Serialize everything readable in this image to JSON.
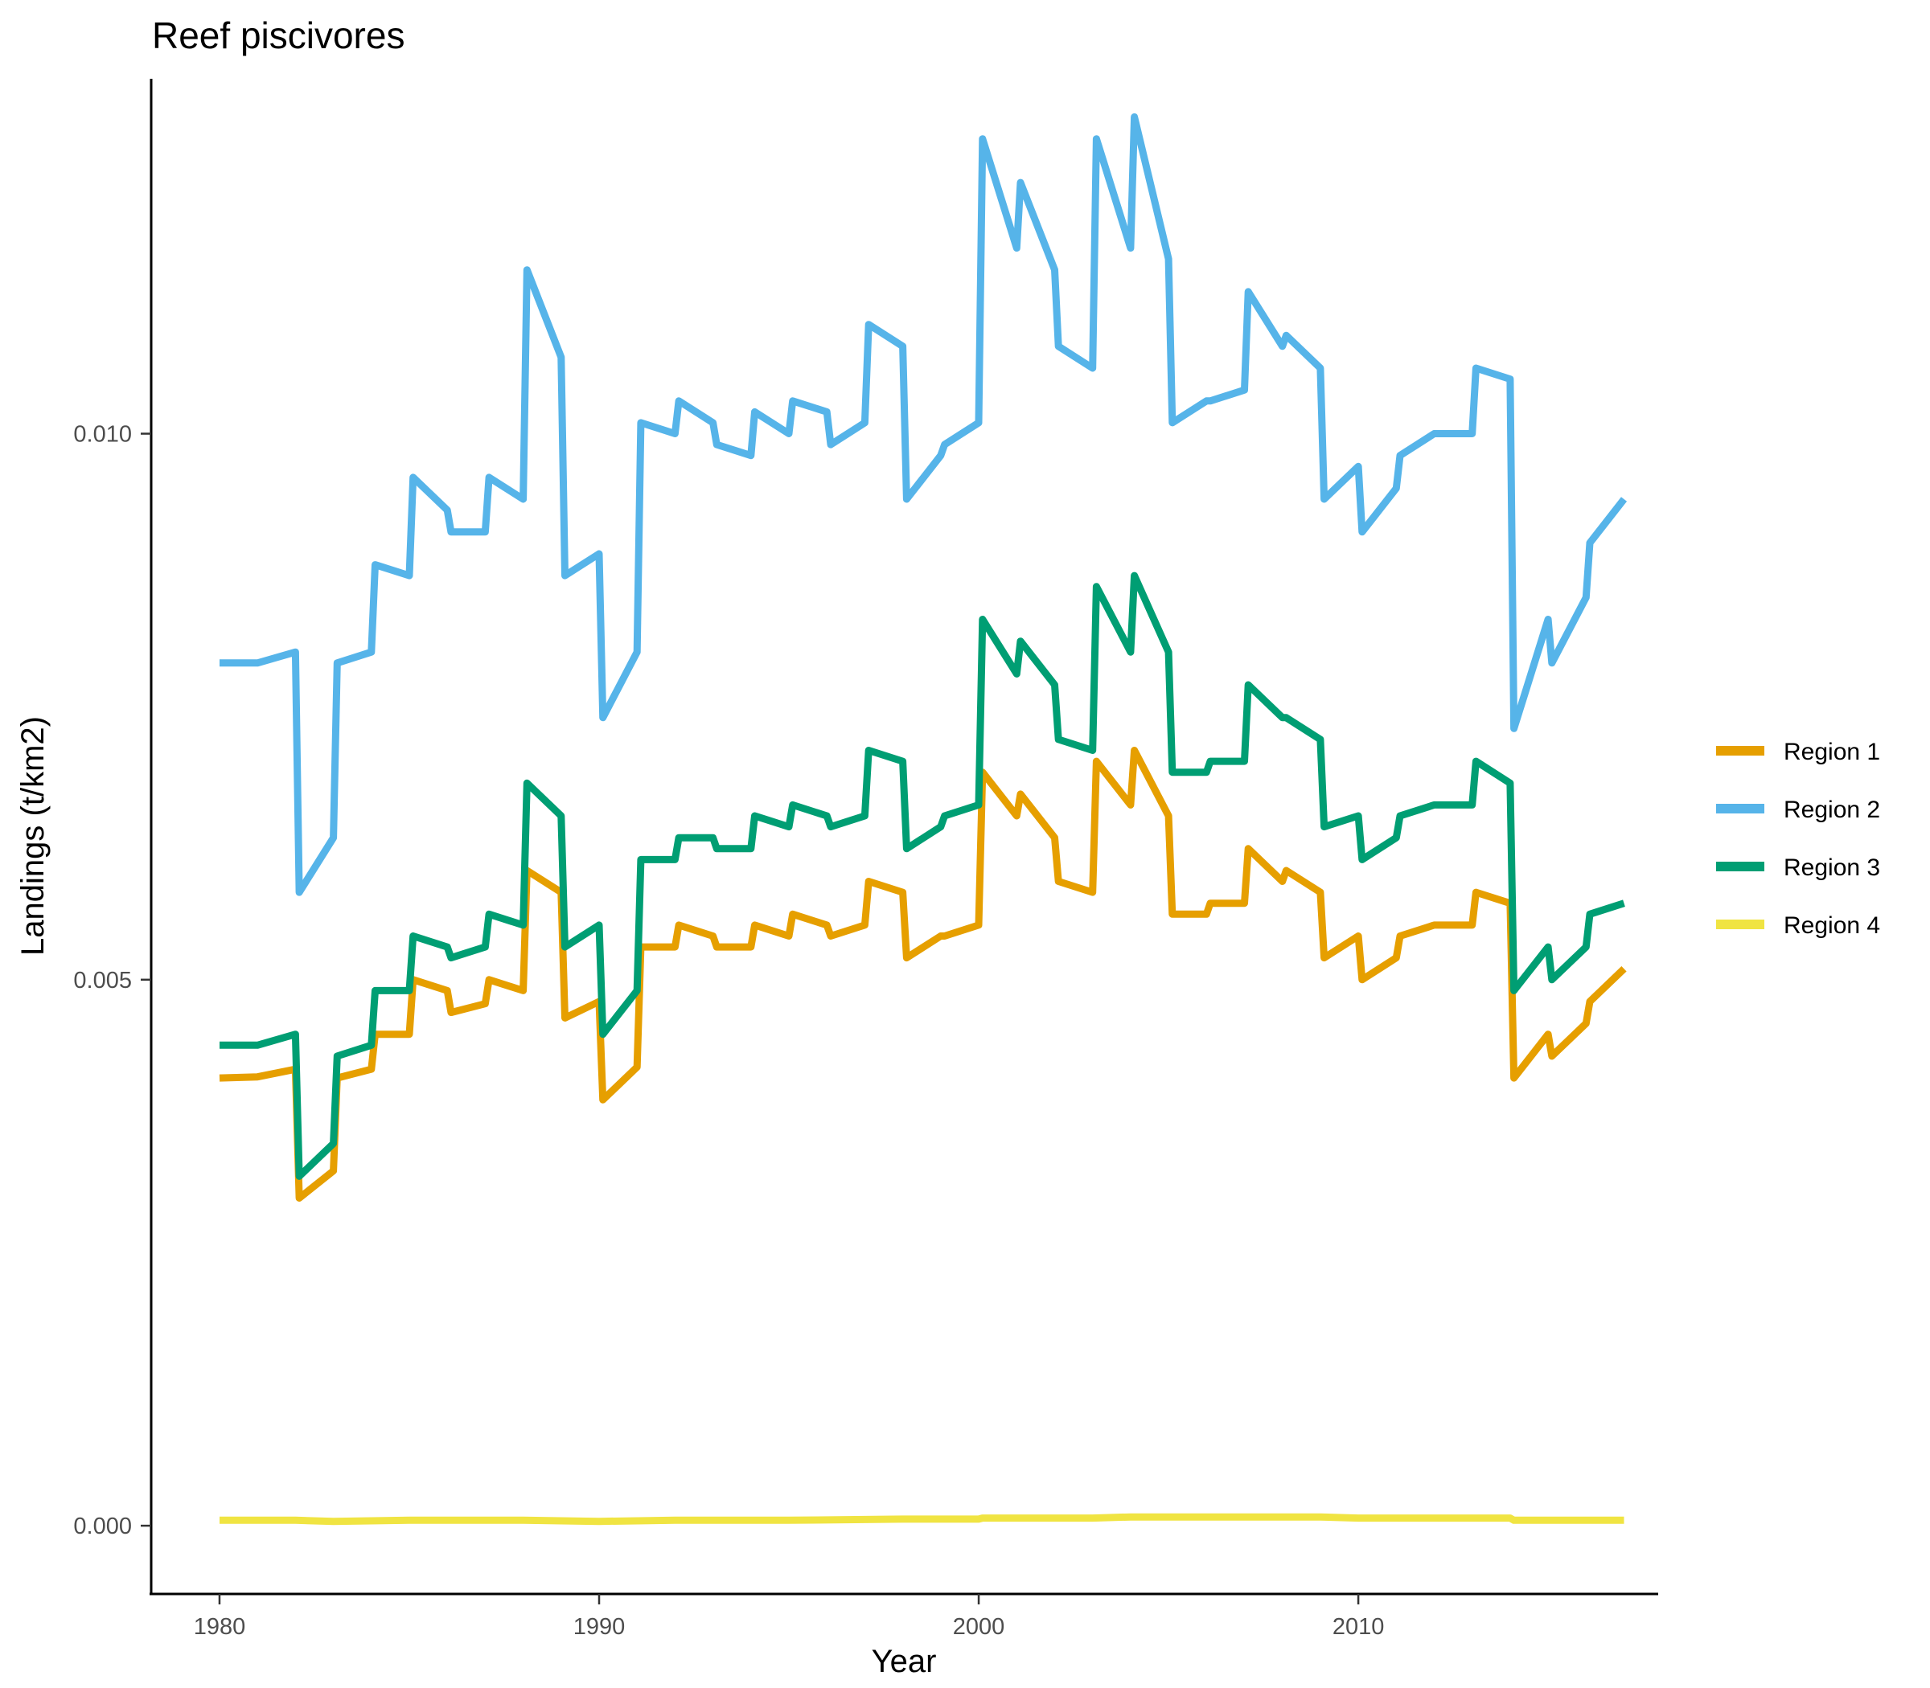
{
  "chart_data": {
    "type": "line",
    "title": "Reef piscivores",
    "xlabel": "Year",
    "ylabel": "Landings (t/km2)",
    "xlim": [
      1978.2,
      2017.9
    ],
    "ylim": [
      -0.000625,
      0.01325
    ],
    "x_ticks": [
      1980,
      1990,
      2000,
      2010
    ],
    "x_tick_labels": [
      "1980",
      "1990",
      "2000",
      "2010"
    ],
    "y_ticks": [
      0,
      0.005,
      0.01
    ],
    "y_tick_labels": [
      "0.000",
      "0.005",
      "0.010"
    ],
    "grid": false,
    "legend_position": "right",
    "series": [
      {
        "name": "Region 1",
        "color": "#E69F00",
        "points": [
          [
            1980.0,
            0.0041
          ],
          [
            1981.0,
            0.00411
          ],
          [
            1982.0,
            0.00418
          ],
          [
            1982.1,
            0.003
          ],
          [
            1983.0,
            0.00325
          ],
          [
            1983.1,
            0.0041
          ],
          [
            1984.0,
            0.00418
          ],
          [
            1984.1,
            0.0045
          ],
          [
            1985.0,
            0.0045
          ],
          [
            1985.1,
            0.005
          ],
          [
            1986.0,
            0.0049
          ],
          [
            1986.1,
            0.0047
          ],
          [
            1987.0,
            0.00478
          ],
          [
            1987.1,
            0.005
          ],
          [
            1988.0,
            0.0049
          ],
          [
            1988.1,
            0.006
          ],
          [
            1989.0,
            0.0058
          ],
          [
            1989.1,
            0.00465
          ],
          [
            1990.0,
            0.0048
          ],
          [
            1990.1,
            0.0039
          ],
          [
            1991.0,
            0.0042
          ],
          [
            1991.1,
            0.0053
          ],
          [
            1992.0,
            0.0053
          ],
          [
            1992.1,
            0.0055
          ],
          [
            1993.0,
            0.0054
          ],
          [
            1993.1,
            0.0053
          ],
          [
            1994.0,
            0.0053
          ],
          [
            1994.1,
            0.0055
          ],
          [
            1995.0,
            0.0054
          ],
          [
            1995.1,
            0.0056
          ],
          [
            1996.0,
            0.0055
          ],
          [
            1996.1,
            0.0054
          ],
          [
            1997.0,
            0.0055
          ],
          [
            1997.1,
            0.0059
          ],
          [
            1998.0,
            0.0058
          ],
          [
            1998.1,
            0.0052
          ],
          [
            1999.0,
            0.0054
          ],
          [
            1999.1,
            0.0054
          ],
          [
            2000.0,
            0.0055
          ],
          [
            2000.1,
            0.0069
          ],
          [
            2001.0,
            0.0065
          ],
          [
            2001.1,
            0.0067
          ],
          [
            2002.0,
            0.0063
          ],
          [
            2002.1,
            0.0059
          ],
          [
            2003.0,
            0.0058
          ],
          [
            2003.1,
            0.007
          ],
          [
            2004.0,
            0.0066
          ],
          [
            2004.1,
            0.0071
          ],
          [
            2005.0,
            0.0065
          ],
          [
            2005.1,
            0.0056
          ],
          [
            2006.0,
            0.0056
          ],
          [
            2006.1,
            0.0057
          ],
          [
            2007.0,
            0.0057
          ],
          [
            2007.1,
            0.0062
          ],
          [
            2008.0,
            0.0059
          ],
          [
            2008.1,
            0.006
          ],
          [
            2009.0,
            0.0058
          ],
          [
            2009.1,
            0.0052
          ],
          [
            2010.0,
            0.0054
          ],
          [
            2010.1,
            0.005
          ],
          [
            2011.0,
            0.0052
          ],
          [
            2011.1,
            0.0054
          ],
          [
            2012.0,
            0.0055
          ],
          [
            2013.0,
            0.0055
          ],
          [
            2013.1,
            0.0058
          ],
          [
            2014.0,
            0.0057
          ],
          [
            2014.1,
            0.0041
          ],
          [
            2015.0,
            0.0045
          ],
          [
            2015.1,
            0.0043
          ],
          [
            2016.0,
            0.0046
          ],
          [
            2016.1,
            0.0048
          ],
          [
            2017.0,
            0.0051
          ]
        ]
      },
      {
        "name": "Region 2",
        "color": "#56B4E9",
        "points": [
          [
            1980.0,
            0.0079
          ],
          [
            1981.0,
            0.0079
          ],
          [
            1982.0,
            0.008
          ],
          [
            1982.1,
            0.0058
          ],
          [
            1983.0,
            0.0063
          ],
          [
            1983.1,
            0.0079
          ],
          [
            1984.0,
            0.008
          ],
          [
            1984.1,
            0.0088
          ],
          [
            1985.0,
            0.0087
          ],
          [
            1985.1,
            0.0096
          ],
          [
            1986.0,
            0.0093
          ],
          [
            1986.1,
            0.0091
          ],
          [
            1987.0,
            0.0091
          ],
          [
            1987.1,
            0.0096
          ],
          [
            1988.0,
            0.0094
          ],
          [
            1988.1,
            0.0115
          ],
          [
            1989.0,
            0.0107
          ],
          [
            1989.1,
            0.0087
          ],
          [
            1990.0,
            0.0089
          ],
          [
            1990.1,
            0.0074
          ],
          [
            1991.0,
            0.008
          ],
          [
            1991.1,
            0.0101
          ],
          [
            1992.0,
            0.01
          ],
          [
            1992.1,
            0.0103
          ],
          [
            1993.0,
            0.0101
          ],
          [
            1993.1,
            0.0099
          ],
          [
            1994.0,
            0.0098
          ],
          [
            1994.1,
            0.0102
          ],
          [
            1995.0,
            0.01
          ],
          [
            1995.1,
            0.0103
          ],
          [
            1996.0,
            0.0102
          ],
          [
            1996.1,
            0.0099
          ],
          [
            1997.0,
            0.0101
          ],
          [
            1997.1,
            0.011
          ],
          [
            1998.0,
            0.0108
          ],
          [
            1998.1,
            0.0094
          ],
          [
            1999.0,
            0.0098
          ],
          [
            1999.1,
            0.0099
          ],
          [
            2000.0,
            0.0101
          ],
          [
            2000.1,
            0.0127
          ],
          [
            2001.0,
            0.0117
          ],
          [
            2001.1,
            0.0123
          ],
          [
            2002.0,
            0.0115
          ],
          [
            2002.1,
            0.0108
          ],
          [
            2003.0,
            0.0106
          ],
          [
            2003.1,
            0.0127
          ],
          [
            2004.0,
            0.0117
          ],
          [
            2004.1,
            0.0129
          ],
          [
            2005.0,
            0.0116
          ],
          [
            2005.1,
            0.0101
          ],
          [
            2006.0,
            0.0103
          ],
          [
            2006.1,
            0.0103
          ],
          [
            2007.0,
            0.0104
          ],
          [
            2007.1,
            0.0113
          ],
          [
            2008.0,
            0.0108
          ],
          [
            2008.1,
            0.0109
          ],
          [
            2009.0,
            0.0106
          ],
          [
            2009.1,
            0.0094
          ],
          [
            2010.0,
            0.0097
          ],
          [
            2010.1,
            0.0091
          ],
          [
            2011.0,
            0.0095
          ],
          [
            2011.1,
            0.0098
          ],
          [
            2012.0,
            0.01
          ],
          [
            2013.0,
            0.01
          ],
          [
            2013.1,
            0.0106
          ],
          [
            2014.0,
            0.0105
          ],
          [
            2014.1,
            0.0073
          ],
          [
            2015.0,
            0.0083
          ],
          [
            2015.1,
            0.0079
          ],
          [
            2016.0,
            0.0085
          ],
          [
            2016.1,
            0.009
          ],
          [
            2017.0,
            0.0094
          ]
        ]
      },
      {
        "name": "Region 3",
        "color": "#009E73",
        "points": [
          [
            1980.0,
            0.0044
          ],
          [
            1981.0,
            0.0044
          ],
          [
            1982.0,
            0.0045
          ],
          [
            1982.1,
            0.0032
          ],
          [
            1983.0,
            0.0035
          ],
          [
            1983.1,
            0.0043
          ],
          [
            1984.0,
            0.0044
          ],
          [
            1984.1,
            0.0049
          ],
          [
            1985.0,
            0.0049
          ],
          [
            1985.1,
            0.0054
          ],
          [
            1986.0,
            0.0053
          ],
          [
            1986.1,
            0.0052
          ],
          [
            1987.0,
            0.0053
          ],
          [
            1987.1,
            0.0056
          ],
          [
            1988.0,
            0.0055
          ],
          [
            1988.1,
            0.0068
          ],
          [
            1989.0,
            0.0065
          ],
          [
            1989.1,
            0.0053
          ],
          [
            1990.0,
            0.0055
          ],
          [
            1990.1,
            0.0045
          ],
          [
            1991.0,
            0.0049
          ],
          [
            1991.1,
            0.0061
          ],
          [
            1992.0,
            0.0061
          ],
          [
            1992.1,
            0.0063
          ],
          [
            1993.0,
            0.0063
          ],
          [
            1993.1,
            0.0062
          ],
          [
            1994.0,
            0.0062
          ],
          [
            1994.1,
            0.0065
          ],
          [
            1995.0,
            0.0064
          ],
          [
            1995.1,
            0.0066
          ],
          [
            1996.0,
            0.0065
          ],
          [
            1996.1,
            0.0064
          ],
          [
            1997.0,
            0.0065
          ],
          [
            1997.1,
            0.0071
          ],
          [
            1998.0,
            0.007
          ],
          [
            1998.1,
            0.0062
          ],
          [
            1999.0,
            0.0064
          ],
          [
            1999.1,
            0.0065
          ],
          [
            2000.0,
            0.0066
          ],
          [
            2000.1,
            0.0083
          ],
          [
            2001.0,
            0.0078
          ],
          [
            2001.1,
            0.0081
          ],
          [
            2002.0,
            0.0077
          ],
          [
            2002.1,
            0.0072
          ],
          [
            2003.0,
            0.0071
          ],
          [
            2003.1,
            0.0086
          ],
          [
            2004.0,
            0.008
          ],
          [
            2004.1,
            0.0087
          ],
          [
            2005.0,
            0.008
          ],
          [
            2005.1,
            0.0069
          ],
          [
            2006.0,
            0.0069
          ],
          [
            2006.1,
            0.007
          ],
          [
            2007.0,
            0.007
          ],
          [
            2007.1,
            0.0077
          ],
          [
            2008.0,
            0.0074
          ],
          [
            2008.1,
            0.0074
          ],
          [
            2009.0,
            0.0072
          ],
          [
            2009.1,
            0.0064
          ],
          [
            2010.0,
            0.0065
          ],
          [
            2010.1,
            0.0061
          ],
          [
            2011.0,
            0.0063
          ],
          [
            2011.1,
            0.0065
          ],
          [
            2012.0,
            0.0066
          ],
          [
            2013.0,
            0.0066
          ],
          [
            2013.1,
            0.007
          ],
          [
            2014.0,
            0.0068
          ],
          [
            2014.1,
            0.0049
          ],
          [
            2015.0,
            0.0053
          ],
          [
            2015.1,
            0.005
          ],
          [
            2016.0,
            0.0053
          ],
          [
            2016.1,
            0.0056
          ],
          [
            2017.0,
            0.0057
          ]
        ]
      },
      {
        "name": "Region 4",
        "color": "#F0E442",
        "points": [
          [
            1980.0,
            5e-05
          ],
          [
            1982.0,
            5e-05
          ],
          [
            1983.0,
            4e-05
          ],
          [
            1985.0,
            5e-05
          ],
          [
            1988.0,
            5e-05
          ],
          [
            1990.0,
            4e-05
          ],
          [
            1992.0,
            5e-05
          ],
          [
            1995.0,
            5e-05
          ],
          [
            1998.0,
            6e-05
          ],
          [
            2000.0,
            6e-05
          ],
          [
            2000.1,
            7e-05
          ],
          [
            2003.0,
            7e-05
          ],
          [
            2004.0,
            8e-05
          ],
          [
            2005.0,
            8e-05
          ],
          [
            2007.0,
            8e-05
          ],
          [
            2009.0,
            8e-05
          ],
          [
            2010.0,
            7e-05
          ],
          [
            2013.0,
            7e-05
          ],
          [
            2014.0,
            7e-05
          ],
          [
            2014.1,
            5e-05
          ],
          [
            2017.0,
            5e-05
          ]
        ]
      }
    ]
  }
}
